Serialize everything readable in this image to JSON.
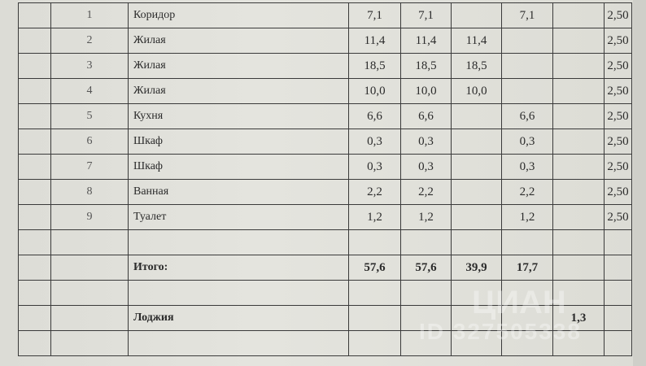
{
  "rows": [
    {
      "n": "1",
      "name": "Коридор",
      "c1": "7,1",
      "c2": "7,1",
      "c3": "",
      "c4": "7,1",
      "c5": "",
      "c6": "2,50"
    },
    {
      "n": "2",
      "name": "Жилая",
      "c1": "11,4",
      "c2": "11,4",
      "c3": "11,4",
      "c4": "",
      "c5": "",
      "c6": "2,50"
    },
    {
      "n": "3",
      "name": "Жилая",
      "c1": "18,5",
      "c2": "18,5",
      "c3": "18,5",
      "c4": "",
      "c5": "",
      "c6": "2,50"
    },
    {
      "n": "4",
      "name": "Жилая",
      "c1": "10,0",
      "c2": "10,0",
      "c3": "10,0",
      "c4": "",
      "c5": "",
      "c6": "2,50"
    },
    {
      "n": "5",
      "name": "Кухня",
      "c1": "6,6",
      "c2": "6,6",
      "c3": "",
      "c4": "6,6",
      "c5": "",
      "c6": "2,50"
    },
    {
      "n": "6",
      "name": "Шкаф",
      "c1": "0,3",
      "c2": "0,3",
      "c3": "",
      "c4": "0,3",
      "c5": "",
      "c6": "2,50"
    },
    {
      "n": "7",
      "name": "Шкаф",
      "c1": "0,3",
      "c2": "0,3",
      "c3": "",
      "c4": "0,3",
      "c5": "",
      "c6": "2,50"
    },
    {
      "n": "8",
      "name": "Ванная",
      "c1": "2,2",
      "c2": "2,2",
      "c3": "",
      "c4": "2,2",
      "c5": "",
      "c6": "2,50"
    },
    {
      "n": "9",
      "name": "Туалет",
      "c1": "1,2",
      "c2": "1,2",
      "c3": "",
      "c4": "1,2",
      "c5": "",
      "c6": "2,50"
    },
    {
      "n": "",
      "name": "",
      "c1": "",
      "c2": "",
      "c3": "",
      "c4": "",
      "c5": "",
      "c6": ""
    },
    {
      "n": "",
      "name": "Итого:",
      "c1": "57,6",
      "c2": "57,6",
      "c3": "39,9",
      "c4": "17,7",
      "c5": "",
      "c6": "",
      "bold": true
    },
    {
      "n": "",
      "name": "",
      "c1": "",
      "c2": "",
      "c3": "",
      "c4": "",
      "c5": "",
      "c6": ""
    },
    {
      "n": "",
      "name": "Лоджия",
      "c1": "",
      "c2": "",
      "c3": "",
      "c4": "",
      "c5": "1,3",
      "c6": "",
      "bold": true
    },
    {
      "n": "",
      "name": "",
      "c1": "",
      "c2": "",
      "c3": "",
      "c4": "",
      "c5": "",
      "c6": ""
    }
  ],
  "watermark": {
    "brand": "ЦИАН",
    "id": "ID 327505338"
  }
}
